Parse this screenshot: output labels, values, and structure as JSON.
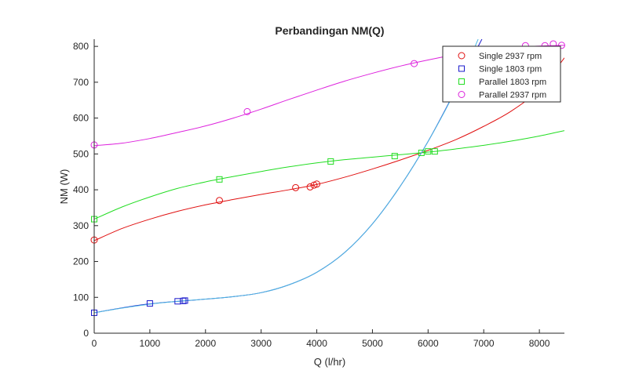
{
  "chart_data": {
    "type": "line",
    "title": "Perbandingan NM(Q)",
    "xlabel": "Q (l/hr)",
    "ylabel": "NM (W)",
    "xlim": [
      0,
      8450
    ],
    "ylim": [
      0,
      820
    ],
    "xticks": [
      0,
      1000,
      2000,
      3000,
      4000,
      5000,
      6000,
      7000,
      8000
    ],
    "yticks": [
      0,
      100,
      200,
      300,
      400,
      500,
      600,
      700,
      800
    ],
    "grid": false,
    "legend_position": "top-right",
    "series": [
      {
        "name": "Single 2937 rpm",
        "color": "#e01010",
        "marker": "circle",
        "points": [
          [
            0,
            260
          ],
          [
            2250,
            370
          ],
          [
            3620,
            406
          ],
          [
            3880,
            408
          ],
          [
            3950,
            413
          ],
          [
            4000,
            416
          ]
        ],
        "curve": [
          [
            0,
            258
          ],
          [
            500,
            292
          ],
          [
            1000,
            318
          ],
          [
            1500,
            340
          ],
          [
            2000,
            358
          ],
          [
            2500,
            373
          ],
          [
            3000,
            387
          ],
          [
            3500,
            400
          ],
          [
            4000,
            415
          ],
          [
            4500,
            435
          ],
          [
            5000,
            458
          ],
          [
            5500,
            483
          ],
          [
            6000,
            510
          ],
          [
            6500,
            540
          ],
          [
            7000,
            577
          ],
          [
            7500,
            620
          ],
          [
            8000,
            680
          ],
          [
            8450,
            768
          ]
        ]
      },
      {
        "name": "Single 1803 rpm",
        "color": "#1a1acc",
        "marker": "square",
        "points": [
          [
            0,
            57
          ],
          [
            1000,
            83
          ],
          [
            1500,
            89
          ],
          [
            1600,
            90
          ],
          [
            1630,
            91
          ]
        ],
        "curve": [
          [
            0,
            57
          ],
          [
            400,
            68
          ],
          [
            800,
            78
          ],
          [
            1200,
            85
          ],
          [
            1600,
            90
          ],
          [
            2000,
            95
          ],
          [
            2500,
            102
          ],
          [
            3000,
            113
          ],
          [
            3500,
            135
          ],
          [
            4000,
            170
          ],
          [
            4500,
            225
          ],
          [
            5000,
            305
          ],
          [
            5500,
            410
          ],
          [
            6000,
            535
          ],
          [
            6500,
            680
          ],
          [
            7000,
            830
          ]
        ]
      },
      {
        "name": "Parallel 1803 rpm",
        "color": "#22dd22",
        "marker": "square",
        "points": [
          [
            0,
            318
          ],
          [
            2250,
            429
          ],
          [
            4250,
            479
          ],
          [
            5400,
            494
          ],
          [
            5880,
            503
          ],
          [
            6000,
            507
          ],
          [
            6120,
            507
          ]
        ],
        "curve": [
          [
            0,
            318
          ],
          [
            500,
            352
          ],
          [
            1000,
            380
          ],
          [
            1500,
            404
          ],
          [
            2000,
            422
          ],
          [
            2500,
            437
          ],
          [
            3000,
            451
          ],
          [
            3500,
            464
          ],
          [
            4000,
            475
          ],
          [
            4500,
            484
          ],
          [
            5000,
            491
          ],
          [
            5500,
            498
          ],
          [
            6000,
            505
          ],
          [
            6500,
            514
          ],
          [
            7000,
            524
          ],
          [
            7500,
            536
          ],
          [
            8000,
            550
          ],
          [
            8450,
            565
          ]
        ]
      },
      {
        "name": "Parallel 2937 rpm",
        "color": "#dd22dd",
        "marker": "circle",
        "points": [
          [
            0,
            525
          ],
          [
            2750,
            618
          ],
          [
            5750,
            752
          ],
          [
            7750,
            802
          ],
          [
            8100,
            802
          ],
          [
            8250,
            807
          ],
          [
            8400,
            803
          ]
        ],
        "curve": [
          [
            0,
            523
          ],
          [
            500,
            530
          ],
          [
            1000,
            543
          ],
          [
            1500,
            560
          ],
          [
            2000,
            578
          ],
          [
            2500,
            600
          ],
          [
            3000,
            625
          ],
          [
            3500,
            652
          ],
          [
            4000,
            678
          ],
          [
            4500,
            703
          ],
          [
            5000,
            725
          ],
          [
            5500,
            745
          ],
          [
            6000,
            762
          ],
          [
            6500,
            777
          ],
          [
            7000,
            789
          ],
          [
            7500,
            797
          ],
          [
            8000,
            801
          ],
          [
            8450,
            803
          ]
        ]
      },
      {
        "color": "#4db8e0",
        "marker": "none",
        "curve": [
          [
            0,
            57
          ],
          [
            500,
            70
          ],
          [
            1000,
            81
          ],
          [
            1500,
            89
          ],
          [
            2000,
            95
          ],
          [
            2500,
            102
          ],
          [
            3000,
            113
          ],
          [
            3500,
            135
          ],
          [
            4000,
            170
          ],
          [
            4500,
            225
          ],
          [
            5000,
            305
          ],
          [
            5500,
            410
          ],
          [
            6000,
            535
          ],
          [
            6500,
            680
          ],
          [
            6900,
            820
          ]
        ]
      }
    ]
  }
}
